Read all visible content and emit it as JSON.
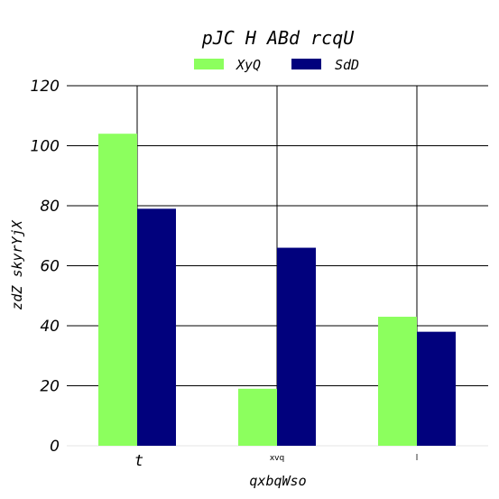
{
  "chart_data": {
    "type": "bar",
    "title": "pJC H ABd rcqU",
    "xlabel": "qxbqWso",
    "ylabel": "zdZ skyrYjX",
    "categories": [
      "t",
      "xvq",
      "l"
    ],
    "series": [
      {
        "name": "XyQ",
        "color": "#8cff5e",
        "values": [
          104,
          19,
          43
        ]
      },
      {
        "name": "SdD",
        "color": "#01017d",
        "values": [
          79,
          66,
          38
        ]
      }
    ],
    "ylim": [
      0,
      120
    ],
    "yticks": [
      "0",
      "20",
      "40",
      "60",
      "80",
      "100",
      "120"
    ],
    "grid": true,
    "legend_position": "top-center"
  }
}
